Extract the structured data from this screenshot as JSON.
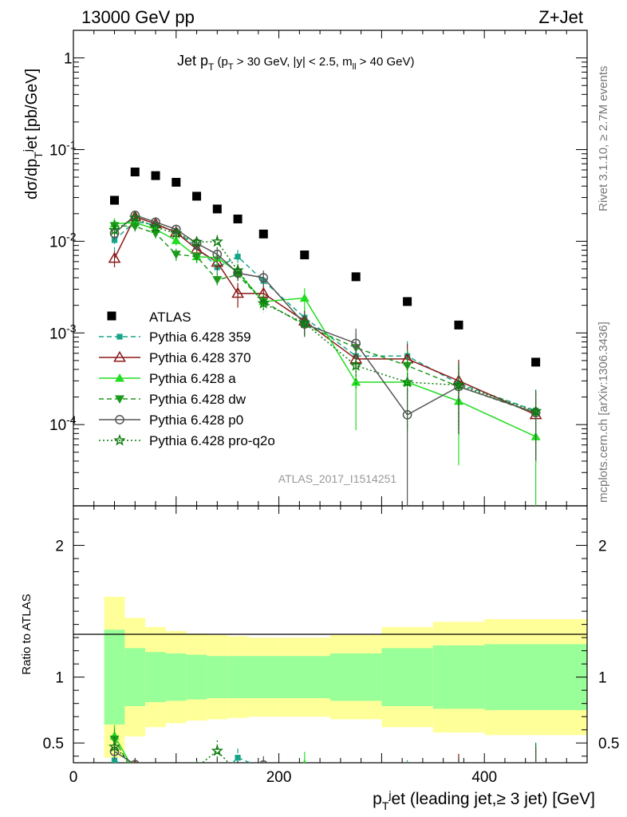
{
  "header": {
    "left": "13000 GeV pp",
    "right": "Z+Jet"
  },
  "side": {
    "rivet": "Rivet 3.1.10, ≥ 2.7M events",
    "mcplots": "mcplots.cern.ch [arXiv:1306.3436]"
  },
  "chart_data": {
    "type": "scatter",
    "title": "Jet p_T (p_T > 30 GeV, |y| < 2.5, m_ll > 40 GeV)",
    "analysis": "ATLAS_2017_I1514251",
    "xlabel": "p_T^jet (leading jet,≥ 3 jet) [GeV]",
    "ylabel": "dσ/dp_T^jet [pb/GeV]",
    "ratio_ylabel": "Ratio to ATLAS",
    "xlim": [
      0,
      500
    ],
    "ylim": [
      1.3e-05,
      2
    ],
    "ylog": true,
    "ratio_ylim": [
      0.35,
      2.3
    ],
    "x_ticks": [
      0,
      200,
      400
    ],
    "y_ticks": [
      "1",
      "10^-1",
      "10^-2",
      "10^-3",
      "10^-4"
    ],
    "ratio_ticks": [
      "0.5",
      "1",
      "2"
    ],
    "legend_position": "middle-left",
    "bins": [
      [
        30,
        50
      ],
      [
        50,
        70
      ],
      [
        70,
        90
      ],
      [
        90,
        110
      ],
      [
        110,
        130
      ],
      [
        130,
        150
      ],
      [
        150,
        170
      ],
      [
        170,
        200
      ],
      [
        200,
        250
      ],
      [
        250,
        300
      ],
      [
        300,
        350
      ],
      [
        350,
        400
      ],
      [
        400,
        500
      ]
    ],
    "data": {
      "name": "ATLAS",
      "x": [
        40,
        60,
        80,
        100,
        120,
        140,
        160,
        185,
        225,
        275,
        325,
        375,
        450
      ],
      "y": [
        0.028,
        0.057,
        0.052,
        0.044,
        0.031,
        0.0225,
        0.0175,
        0.012,
        0.0071,
        0.0041,
        0.0022,
        0.00122,
        0.00048
      ],
      "band_green": [
        0.36,
        0.22,
        0.19,
        0.18,
        0.17,
        0.16,
        0.16,
        0.16,
        0.16,
        0.18,
        0.22,
        0.24,
        0.25
      ],
      "band_yellow": [
        0.61,
        0.45,
        0.38,
        0.35,
        0.33,
        0.32,
        0.31,
        0.3,
        0.3,
        0.32,
        0.38,
        0.42,
        0.44
      ]
    },
    "series": [
      {
        "name": "Pythia 6.428 359",
        "color": "#17a589",
        "line": "dashed",
        "marker": "square",
        "x": [
          40,
          60,
          80,
          100,
          120,
          140,
          160,
          185,
          225,
          275,
          325,
          375,
          450
        ],
        "y": [
          0.0103,
          0.0165,
          0.015,
          0.0128,
          0.0087,
          0.0052,
          0.0068,
          0.0037,
          0.00147,
          0.00056,
          0.00056,
          0.00028,
          0.000142
        ],
        "err": [
          0.25,
          0.12,
          0.12,
          0.12,
          0.15,
          0.18,
          0.18,
          0.2,
          0.28,
          0.45,
          0.45,
          0.7,
          0.7
        ]
      },
      {
        "name": "Pythia 6.428 370",
        "color": "#8b1a1a",
        "line": "solid",
        "marker": "triangle-open",
        "x": [
          40,
          60,
          80,
          100,
          120,
          140,
          160,
          185,
          225,
          275,
          325,
          375,
          450
        ],
        "y": [
          0.0065,
          0.0185,
          0.0155,
          0.0125,
          0.0082,
          0.0059,
          0.0027,
          0.0027,
          0.00135,
          0.00052,
          0.00052,
          0.0003,
          0.000128
        ],
        "err": [
          0.2,
          0.12,
          0.12,
          0.12,
          0.15,
          0.18,
          0.3,
          0.2,
          0.28,
          0.45,
          0.45,
          0.7,
          0.7
        ]
      },
      {
        "name": "Pythia 6.428 a",
        "color": "#22dd22",
        "line": "solid",
        "marker": "triangle",
        "x": [
          40,
          60,
          80,
          100,
          120,
          140,
          160,
          185,
          225,
          275,
          325,
          375,
          450
        ],
        "y": [
          0.0155,
          0.016,
          0.0135,
          0.0102,
          0.0068,
          0.0066,
          0.0046,
          0.0022,
          0.0024,
          0.00029,
          0.00029,
          0.00018,
          7.4e-05
        ],
        "err": [
          0.15,
          0.12,
          0.12,
          0.12,
          0.15,
          0.18,
          0.18,
          0.2,
          0.28,
          0.7,
          0.7,
          0.8,
          0.85
        ]
      },
      {
        "name": "Pythia 6.428 dw",
        "color": "#1c9a1c",
        "line": "dashed",
        "marker": "triangle-down",
        "x": [
          40,
          60,
          80,
          100,
          120,
          140,
          160,
          185,
          225,
          275,
          325,
          375,
          450
        ],
        "y": [
          0.0148,
          0.0145,
          0.0122,
          0.0072,
          0.0068,
          0.0038,
          0.0043,
          0.0022,
          0.00122,
          0.00069,
          0.00044,
          0.00026,
          0.000133
        ],
        "err": [
          0.15,
          0.12,
          0.12,
          0.15,
          0.15,
          0.2,
          0.18,
          0.2,
          0.28,
          0.45,
          0.5,
          0.7,
          0.7
        ]
      },
      {
        "name": "Pythia 6.428 p0",
        "color": "#555555",
        "line": "solid",
        "marker": "circle-open",
        "x": [
          40,
          60,
          80,
          100,
          120,
          140,
          160,
          185,
          225,
          275,
          325,
          375,
          450
        ],
        "y": [
          0.0122,
          0.0192,
          0.0162,
          0.0135,
          0.0095,
          0.0072,
          0.0045,
          0.004,
          0.00125,
          0.00077,
          0.000128,
          0.00026,
          0.000135
        ],
        "err": [
          0.15,
          0.12,
          0.12,
          0.12,
          0.15,
          0.18,
          0.18,
          0.2,
          0.28,
          0.45,
          1.0,
          0.7,
          0.7
        ]
      },
      {
        "name": "Pythia 6.428 pro-q2o",
        "color": "#0a7a0a",
        "line": "dotted",
        "marker": "star",
        "x": [
          40,
          60,
          80,
          100,
          120,
          140,
          160,
          185,
          225,
          275,
          325,
          375,
          450
        ],
        "y": [
          0.0132,
          0.018,
          0.0142,
          0.0122,
          0.0098,
          0.0099,
          0.0048,
          0.0021,
          0.00128,
          0.00044,
          0.00029,
          0.00027,
          0.00014
        ],
        "err": [
          0.15,
          0.12,
          0.12,
          0.12,
          0.15,
          0.18,
          0.18,
          0.2,
          0.28,
          0.45,
          0.7,
          0.7,
          0.7
        ]
      }
    ]
  }
}
